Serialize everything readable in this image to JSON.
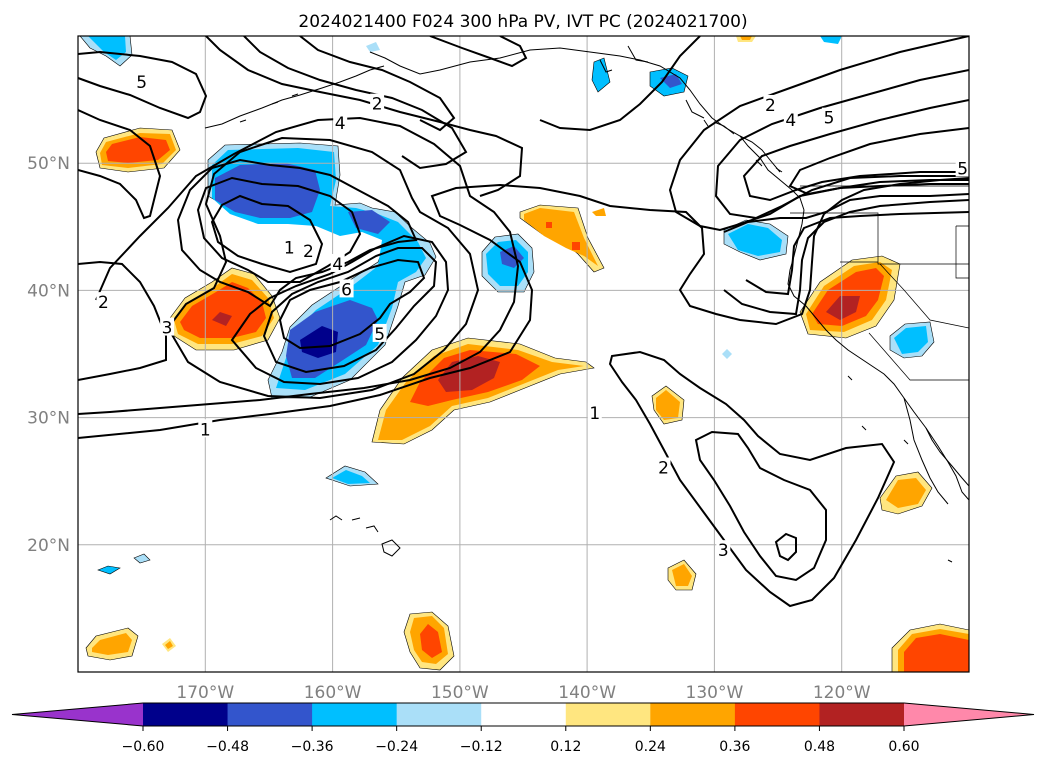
{
  "title": "2024021400 F024 300 hPa PV, IVT PC (2024021700)",
  "map": {
    "lon_range": [
      -180,
      -110
    ],
    "lat_range": [
      10,
      60
    ],
    "lat_ticks": [
      {
        "value": 50,
        "label": "50°N"
      },
      {
        "value": 40,
        "label": "40°N"
      },
      {
        "value": 30,
        "label": "30°N"
      },
      {
        "value": 20,
        "label": "20°N"
      }
    ],
    "lon_ticks": [
      {
        "value": -170,
        "label": "170°W"
      },
      {
        "value": -160,
        "label": "160°W"
      },
      {
        "value": -150,
        "label": "150°W"
      },
      {
        "value": -140,
        "label": "140°W"
      },
      {
        "value": -130,
        "label": "130°W"
      },
      {
        "value": -120,
        "label": "120°W"
      }
    ],
    "gridlines": true,
    "tick_label_color": "#808080"
  },
  "colorbar": {
    "tick_labels": [
      "−0.60",
      "−0.48",
      "−0.36",
      "−0.24",
      "−0.12",
      "0.12",
      "0.24",
      "0.36",
      "0.48",
      "0.60"
    ],
    "levels": [
      -0.6,
      -0.48,
      -0.36,
      -0.24,
      -0.12,
      0.12,
      0.24,
      0.36,
      0.48,
      0.6
    ],
    "colors": [
      "#9933cc",
      "#00008b",
      "#3355cc",
      "#00bfff",
      "#aadff8",
      "#ffffff",
      "#ffe680",
      "#ffa500",
      "#ff4500",
      "#b22222",
      "#ff88aa"
    ],
    "extend": "both"
  },
  "contour_labels": [
    {
      "text": "5",
      "lon": -175,
      "lat": 56.3
    },
    {
      "text": "2",
      "lon": -156.5,
      "lat": 54.6
    },
    {
      "text": "4",
      "lon": -159.4,
      "lat": 53.1
    },
    {
      "text": "1",
      "lon": -163.4,
      "lat": 43.3
    },
    {
      "text": "2",
      "lon": -161.9,
      "lat": 43.0
    },
    {
      "text": "4",
      "lon": -159.6,
      "lat": 42.0
    },
    {
      "text": "6",
      "lon": -158.9,
      "lat": 40.0
    },
    {
      "text": "5",
      "lon": -156.3,
      "lat": 36.5
    },
    {
      "text": "2",
      "lon": -178.0,
      "lat": 39.0
    },
    {
      "text": "3",
      "lon": -173.0,
      "lat": 37.0
    },
    {
      "text": "1",
      "lon": -170.0,
      "lat": 29.0
    },
    {
      "text": "1",
      "lon": -139.4,
      "lat": 30.3
    },
    {
      "text": "2",
      "lon": -134.0,
      "lat": 26.0
    },
    {
      "text": "3",
      "lon": -129.3,
      "lat": 19.5
    },
    {
      "text": "2",
      "lon": -125.6,
      "lat": 54.5
    },
    {
      "text": "4",
      "lon": -124.0,
      "lat": 53.3
    },
    {
      "text": "5",
      "lon": -121.0,
      "lat": 53.5
    },
    {
      "text": "5",
      "lon": -110.5,
      "lat": 49.5
    }
  ]
}
